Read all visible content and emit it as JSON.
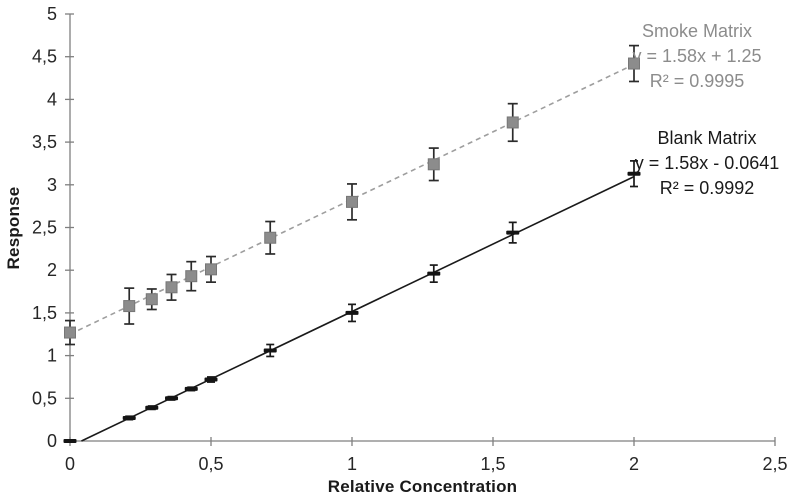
{
  "axes": {
    "xlabel": "Relative Concentration",
    "ylabel": "Response"
  },
  "annotations": {
    "smoke": {
      "title": "Smoke Matrix",
      "equation": "y = 1.58x + 1.25",
      "r2": "R² = 0.9995"
    },
    "blank": {
      "title": "Blank Matrix",
      "equation": "y = 1.58x - 0.0641",
      "r2": "R² = 0.9992"
    }
  },
  "chart_data": {
    "type": "scatter",
    "title": "",
    "xlabel": "Relative Concentration",
    "ylabel": "Response",
    "xlim": [
      0,
      2.5
    ],
    "ylim": [
      0,
      5
    ],
    "grid": false,
    "legend_position": "inline-annotations",
    "x_tick_values": [
      0,
      0.5,
      1,
      1.5,
      2,
      2.5
    ],
    "x_tick_labels": [
      "0",
      "0,5",
      "1",
      "1,5",
      "2",
      "2,5"
    ],
    "y_tick_values": [
      0,
      0.5,
      1,
      1.5,
      2,
      2.5,
      3,
      3.5,
      4,
      4.5,
      5
    ],
    "y_tick_labels": [
      "0",
      "0,5",
      "1",
      "1,5",
      "2",
      "2,5",
      "3",
      "3,5",
      "4",
      "4,5",
      "5"
    ],
    "x": [
      0,
      0.21,
      0.29,
      0.36,
      0.43,
      0.5,
      0.71,
      1,
      1.29,
      1.57,
      2
    ],
    "series": [
      {
        "name": "Smoke Matrix",
        "marker": "square",
        "line_style": "dashed",
        "marker_color": "#8c8c8c",
        "marker_border_color": "#777777",
        "line_color": "#9e9e9e",
        "error_bar_color": "#2b2b2b",
        "values": [
          1.27,
          1.58,
          1.66,
          1.8,
          1.93,
          2.01,
          2.38,
          2.8,
          3.24,
          3.73,
          4.42
        ],
        "errors": [
          0.14,
          0.21,
          0.12,
          0.15,
          0.17,
          0.15,
          0.19,
          0.21,
          0.19,
          0.22,
          0.21
        ],
        "trend": {
          "slope": 1.58,
          "intercept": 1.25,
          "x_start": 0,
          "x_end": 2
        },
        "equation": "y = 1.58x + 1.25",
        "r_squared": "R² = 0.9995"
      },
      {
        "name": "Blank Matrix",
        "marker": "dash",
        "line_style": "solid",
        "marker_color": "#141414",
        "marker_border_color": "#141414",
        "line_color": "#1a1a1a",
        "error_bar_color": "#1a1a1a",
        "values": [
          0.0,
          0.27,
          0.39,
          0.5,
          0.61,
          0.72,
          1.06,
          1.5,
          1.96,
          2.44,
          3.13
        ],
        "errors": [
          0.01,
          0.02,
          0.02,
          0.02,
          0.02,
          0.03,
          0.07,
          0.1,
          0.1,
          0.12,
          0.15
        ],
        "trend": {
          "slope": 1.58,
          "intercept": -0.0641,
          "x_start": 0.0406,
          "x_end": 2
        },
        "equation": "y = 1.58x - 0.0641",
        "r_squared": "R² = 0.9992"
      }
    ],
    "axis_color": "#7f7f7f",
    "tick_label_color": "#262626"
  }
}
